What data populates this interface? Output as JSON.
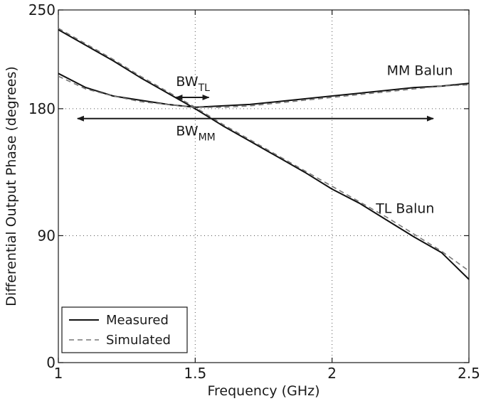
{
  "chart_data": {
    "type": "line",
    "title": "",
    "xlabel": "Frequency (GHz)",
    "ylabel": "Differential Output Phase (degrees)",
    "xlim": [
      1,
      2.5
    ],
    "ylim": [
      0,
      250
    ],
    "xticks": [
      1,
      1.5,
      2,
      2.5
    ],
    "xtick_labels": [
      "1",
      "1.5",
      "2",
      "2.5"
    ],
    "yticks": [
      0,
      90,
      180,
      250
    ],
    "ytick_labels": [
      "0",
      "90",
      "180",
      "250"
    ],
    "grid": true,
    "legend_position": "bottom-left",
    "legend": [
      {
        "label": "Measured",
        "style": "solid"
      },
      {
        "label": "Simulated",
        "style": "dashed"
      }
    ],
    "series": [
      {
        "curve": "TL Balun",
        "style": "solid",
        "x": [
          1.0,
          1.1,
          1.2,
          1.3,
          1.4,
          1.5,
          1.6,
          1.7,
          1.8,
          1.9,
          2.0,
          2.1,
          2.2,
          2.3,
          2.4,
          2.5
        ],
        "y": [
          236,
          225,
          214,
          202,
          191,
          180,
          168,
          157,
          146,
          135,
          123,
          113,
          101,
          89,
          78,
          59
        ]
      },
      {
        "curve": "TL Balun",
        "style": "dashed",
        "x": [
          1.0,
          1.1,
          1.2,
          1.3,
          1.4,
          1.5,
          1.6,
          1.7,
          1.8,
          1.9,
          2.0,
          2.1,
          2.2,
          2.3,
          2.4,
          2.5
        ],
        "y": [
          237,
          226,
          215,
          203,
          192,
          181,
          169,
          158,
          147,
          136,
          125,
          114,
          103,
          91,
          79,
          65
        ]
      },
      {
        "curve": "MM Balun",
        "style": "solid",
        "x": [
          1.0,
          1.1,
          1.2,
          1.3,
          1.4,
          1.5,
          1.6,
          1.7,
          1.8,
          1.9,
          2.0,
          2.1,
          2.2,
          2.3,
          2.4,
          2.5
        ],
        "y": [
          205,
          195,
          189,
          186,
          183,
          181,
          182,
          183,
          185,
          187,
          189,
          191,
          193,
          195,
          196,
          198
        ]
      },
      {
        "curve": "MM Balun",
        "style": "dashed",
        "x": [
          1.0,
          1.1,
          1.2,
          1.3,
          1.4,
          1.5,
          1.6,
          1.7,
          1.8,
          1.9,
          2.0,
          2.1,
          2.2,
          2.3,
          2.4,
          2.5
        ],
        "y": [
          203,
          194,
          189,
          185,
          183,
          181,
          181,
          182,
          184,
          186,
          188,
          190,
          192,
          194,
          196,
          197
        ]
      }
    ],
    "annotations": [
      {
        "text": "MM Balun",
        "x": 2.2,
        "y": 204
      },
      {
        "text": "TL Balun",
        "x": 2.16,
        "y": 106
      },
      {
        "main": "BW",
        "sub": "TL",
        "x": 1.43,
        "y": 196
      },
      {
        "main": "BW",
        "sub": "MM",
        "x": 1.43,
        "y": 161
      }
    ],
    "arrows": [
      {
        "name": "BW_TL",
        "x_from": 1.43,
        "x_to": 1.55,
        "y": 188
      },
      {
        "name": "BW_MM",
        "x_from": 1.07,
        "x_to": 2.37,
        "y": 173
      }
    ]
  }
}
